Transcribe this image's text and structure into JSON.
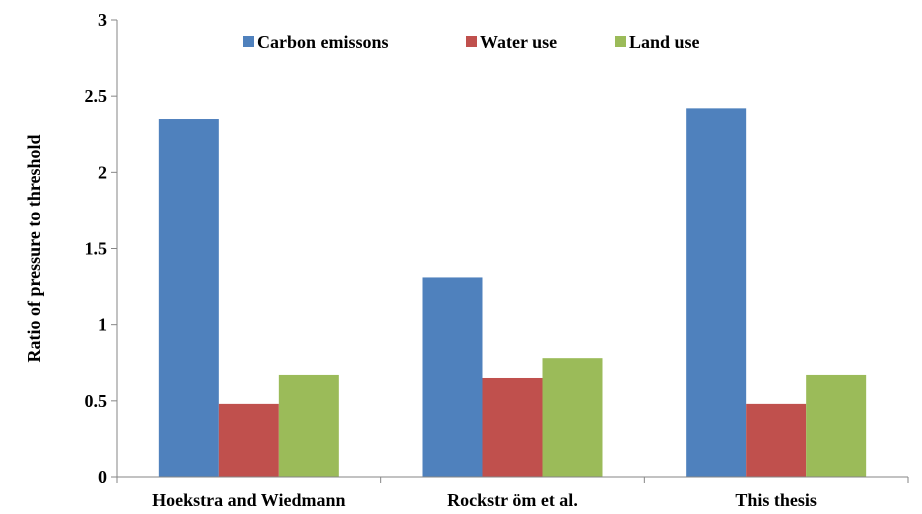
{
  "chart_data": {
    "type": "bar",
    "categories": [
      "Hoekstra and Wiedmann",
      "Rockstr öm et al.",
      "This thesis"
    ],
    "series": [
      {
        "name": "Carbon emissons",
        "values": [
          2.35,
          1.31,
          2.42
        ],
        "color": "#4F81BD"
      },
      {
        "name": "Water use",
        "values": [
          0.48,
          0.65,
          0.48
        ],
        "color": "#C0504D"
      },
      {
        "name": "Land use",
        "values": [
          0.67,
          0.78,
          0.67
        ],
        "color": "#9BBB59"
      }
    ],
    "ylabel": "Ratio of pressure to threshold",
    "xlabel": "",
    "ylim": [
      0,
      3
    ],
    "yticks": [
      0,
      0.5,
      1,
      1.5,
      2,
      2.5,
      3
    ],
    "ytick_labels": [
      "0",
      "0.5",
      "1",
      "1.5",
      "2",
      "2.5",
      "3"
    ],
    "grid": false,
    "legend_position": "top-center"
  }
}
